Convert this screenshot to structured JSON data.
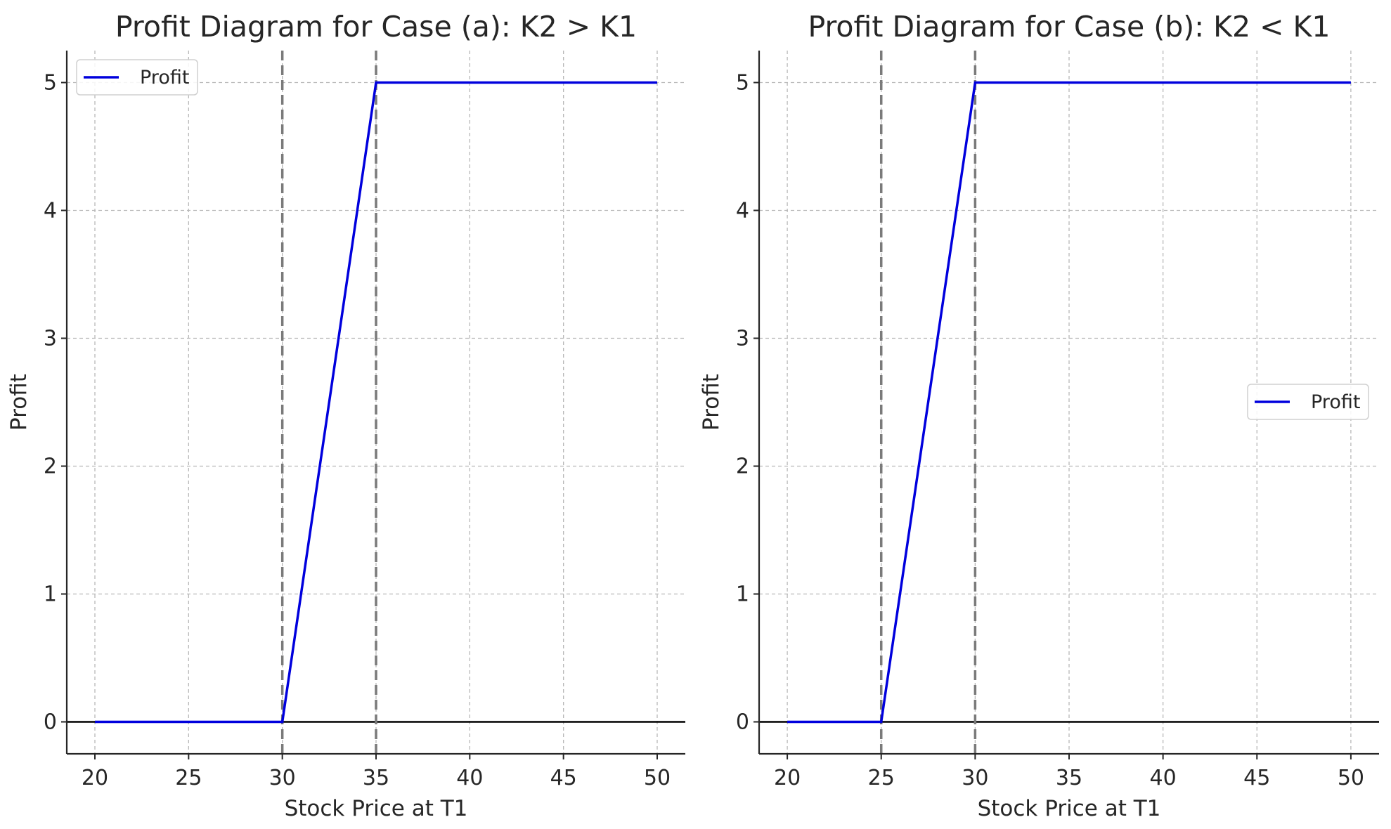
{
  "chart_data": [
    {
      "type": "line",
      "title": "Profit Diagram for Case (a): K2 > K1",
      "xlabel": "Stock Price at T1",
      "ylabel": "Profit",
      "xlim": [
        18.5,
        51.5
      ],
      "ylim": [
        -0.25,
        5.25
      ],
      "xticks": [
        20,
        25,
        30,
        35,
        40,
        45,
        50
      ],
      "yticks": [
        0,
        1,
        2,
        3,
        4,
        5
      ],
      "grid": true,
      "legend_position": "upper-left",
      "series": [
        {
          "name": "Profit",
          "color": "#0000dd",
          "x": [
            20,
            30,
            35,
            50
          ],
          "y": [
            0,
            0,
            5,
            5
          ]
        }
      ],
      "vlines": [
        30,
        35
      ],
      "hline": 0
    },
    {
      "type": "line",
      "title": "Profit Diagram for Case (b): K2 < K1",
      "xlabel": "Stock Price at T1",
      "ylabel": "Profit",
      "xlim": [
        18.5,
        51.5
      ],
      "ylim": [
        -0.25,
        5.25
      ],
      "xticks": [
        20,
        25,
        30,
        35,
        40,
        45,
        50
      ],
      "yticks": [
        0,
        1,
        2,
        3,
        4,
        5
      ],
      "grid": true,
      "legend_position": "center-right",
      "series": [
        {
          "name": "Profit",
          "color": "#0000dd",
          "x": [
            20,
            25,
            30,
            50
          ],
          "y": [
            0,
            0,
            5,
            5
          ]
        }
      ],
      "vlines": [
        25,
        30
      ],
      "hline": 0
    }
  ]
}
